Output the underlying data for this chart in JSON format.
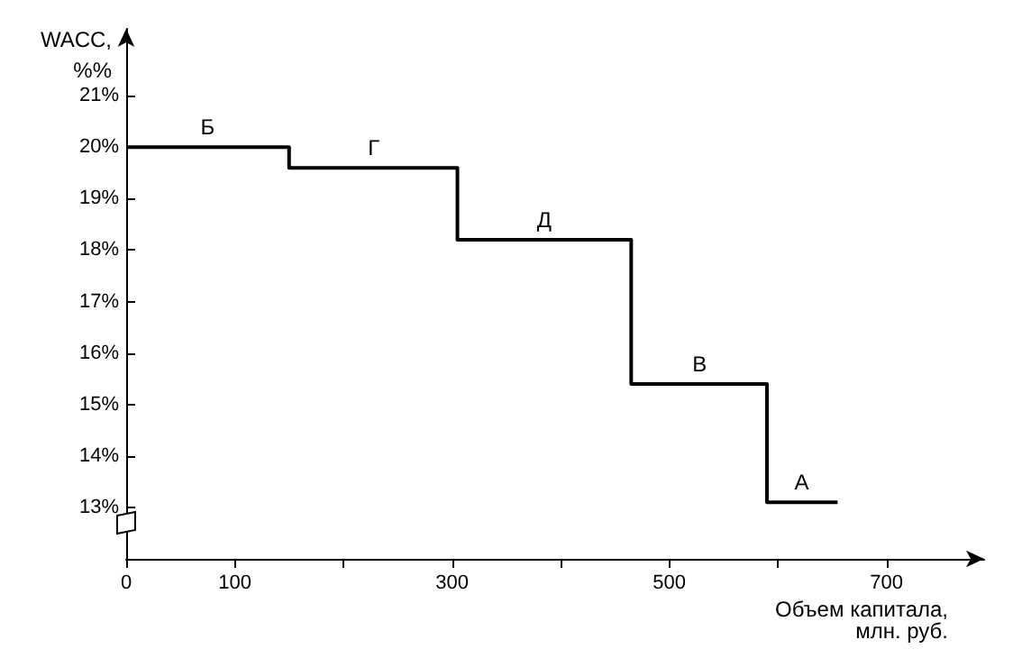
{
  "chart_data": {
    "type": "step",
    "xlabel": "Объем капитала,\nмлн. руб.",
    "ylabel": "WACC,\n%%",
    "x": [
      0,
      150,
      305,
      465,
      590,
      655
    ],
    "series": [
      {
        "color": "#000000",
        "values": [
          20,
          19.6,
          18.2,
          15.4,
          13.1,
          13.1
        ]
      }
    ],
    "xlim": [
      0,
      790
    ],
    "xticks": [
      0,
      100,
      {
        "value": 200,
        "label": null
      },
      300,
      {
        "value": 400,
        "label": null
      },
      500,
      {
        "value": 600,
        "label": null
      },
      700
    ],
    "ylim": [
      12,
      22.3
    ],
    "yticks": [
      {
        "value": 13,
        "label": "13%"
      },
      {
        "value": 14,
        "label": "14%"
      },
      {
        "value": 15,
        "label": "15%"
      },
      {
        "value": 16,
        "label": "16%"
      },
      {
        "value": 17,
        "label": "17%"
      },
      {
        "value": 18,
        "label": "18%"
      },
      {
        "value": 19,
        "label": "19%"
      },
      {
        "value": 20,
        "label": "20%"
      },
      {
        "value": 21,
        "label": "21%"
      }
    ],
    "annotations": [
      {
        "text": "Б",
        "x": 75,
        "y": 20
      },
      {
        "text": "Г",
        "x": 228,
        "y": 19.6
      },
      {
        "text": "Д",
        "x": 385,
        "y": 18.2
      },
      {
        "text": "В",
        "x": 528,
        "y": 15.4
      },
      {
        "text": "А",
        "x": 622,
        "y": 13.1
      }
    ],
    "grid": false,
    "marker": "none",
    "line_style": "solid"
  }
}
